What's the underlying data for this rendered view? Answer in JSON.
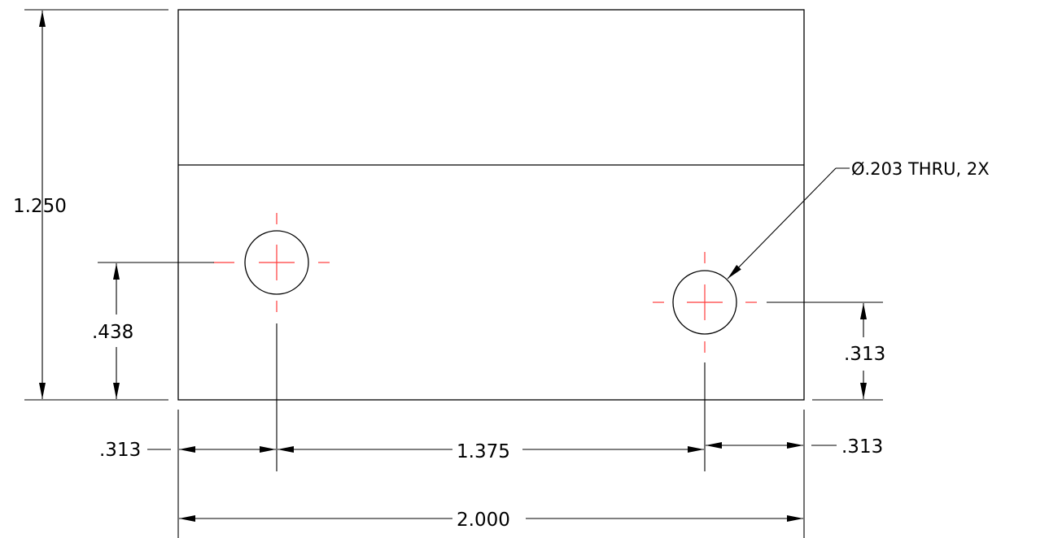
{
  "colors": {
    "line": "#000000",
    "centerline": "#ff3b3b",
    "background": "#ffffff"
  },
  "dimensions": {
    "overall_height": "1.250",
    "left_hole_height": ".438",
    "right_hole_height": ".313",
    "left_edge_offset": ".313",
    "hole_spacing": "1.375",
    "right_edge_offset": ".313",
    "overall_width": "2.000"
  },
  "callout": {
    "hole_note": "Ø.203 THRU, 2X"
  }
}
